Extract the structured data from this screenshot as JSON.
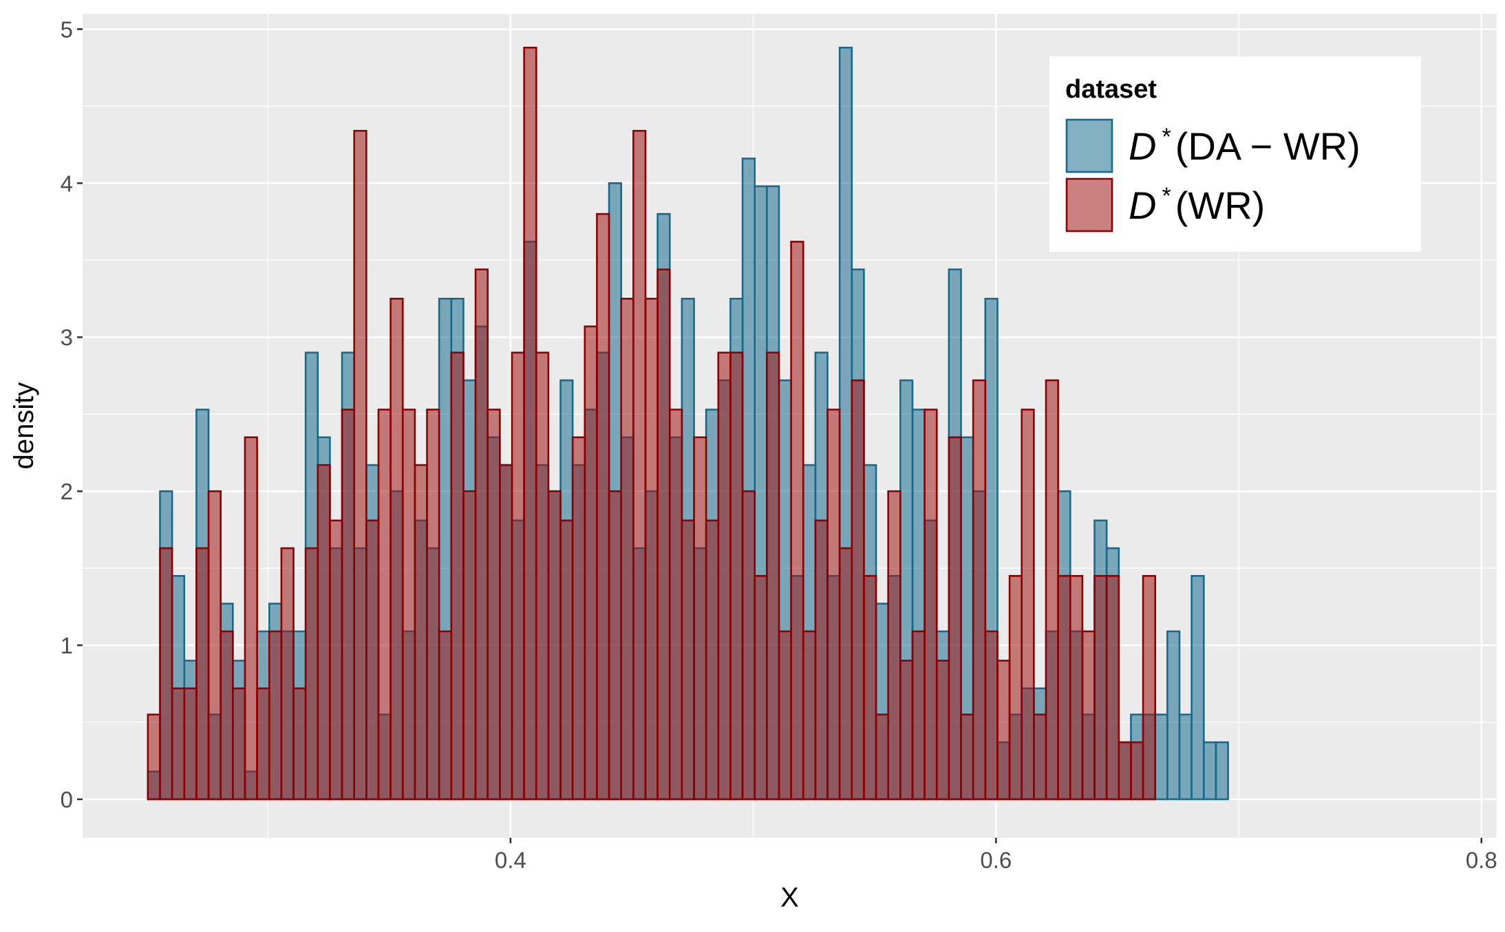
{
  "chart_data": {
    "type": "bar",
    "title": "",
    "xlabel": "X",
    "ylabel": "density",
    "xlim": [
      0.2237,
      0.8063
    ],
    "ylim": [
      -0.25,
      5.1
    ],
    "x_ticks": [
      0.4,
      0.6,
      0.8
    ],
    "x_tick_labels": [
      "0.4",
      "0.6",
      "0.8"
    ],
    "y_ticks": [
      0,
      1,
      2,
      3,
      4,
      5
    ],
    "y_tick_labels": [
      "0",
      "1",
      "2",
      "3",
      "4",
      "5"
    ],
    "grid": true,
    "bins": {
      "start": 0.2506,
      "width": 0.005
    },
    "legend": {
      "title": "dataset",
      "position": "top-right"
    },
    "series": [
      {
        "name": "D*(DA−WR)",
        "legend_parts": {
          "sym": "D",
          "sup": "*",
          "arg": "DA − WR"
        },
        "fill": "#1b6f8f",
        "stroke": "#16698a",
        "values": [
          0.18,
          2.0,
          1.45,
          0.9,
          2.53,
          0.55,
          1.27,
          0.9,
          0.18,
          1.09,
          1.27,
          1.09,
          1.09,
          2.9,
          2.35,
          1.63,
          2.9,
          1.63,
          2.17,
          0.55,
          2.0,
          1.09,
          1.81,
          1.63,
          3.25,
          3.25,
          2.72,
          3.07,
          2.35,
          2.17,
          1.81,
          3.62,
          2.17,
          2.0,
          2.72,
          2.17,
          2.53,
          2.9,
          4.0,
          2.35,
          1.63,
          2.0,
          3.8,
          2.35,
          3.25,
          1.63,
          2.53,
          2.72,
          3.25,
          4.16,
          3.98,
          3.98,
          2.72,
          1.45,
          2.17,
          2.9,
          1.45,
          4.88,
          3.44,
          2.17,
          1.27,
          1.45,
          2.72,
          2.53,
          1.81,
          1.09,
          3.44,
          2.35,
          2.0,
          3.25,
          0.37,
          0.55,
          0.72,
          0.72,
          1.09,
          2.0,
          1.09,
          0.55,
          1.81,
          1.63,
          0.37,
          0.55,
          0.55,
          0.55,
          1.09,
          0.55,
          1.45,
          0.37,
          0.37
        ],
        "bar_ids": [
          "a01",
          "a02",
          "a03",
          "a04",
          "a05",
          "a06",
          "a07",
          "a08",
          "a09",
          "a10",
          "a11",
          "a12",
          "a13",
          "a14",
          "a15",
          "a16",
          "a17",
          "a18",
          "a19",
          "a20",
          "a21",
          "a22",
          "a23",
          "a24",
          "a25",
          "a26",
          "a27",
          "a28",
          "a29",
          "a30",
          "a31",
          "a32",
          "a33",
          "a34",
          "a35",
          "a36",
          "a37",
          "a38",
          "a39",
          "a40",
          "a41",
          "a42",
          "a43",
          "a44",
          "a45",
          "a46",
          "a47",
          "a48",
          "a49",
          "a50",
          "a51",
          "a52",
          "a53",
          "a54",
          "a55",
          "a56",
          "a57",
          "a58",
          "a59",
          "a60",
          "a61",
          "a62",
          "a63",
          "a64",
          "a65",
          "a66",
          "a67",
          "a68",
          "a69",
          "a70",
          "a71",
          "a72",
          "a73",
          "a74",
          "a75",
          "a76",
          "a77",
          "a78",
          "a79",
          "a80",
          "a81",
          "a82",
          "a83",
          "a84",
          "a85",
          "a86",
          "a87",
          "a88",
          "a89"
        ]
      },
      {
        "name": "D*(WR)",
        "legend_parts": {
          "sym": "D",
          "sup": "*",
          "arg": "WR"
        },
        "fill": "#a31a1a",
        "stroke": "#8b0000",
        "values": [
          0.55,
          1.63,
          0.72,
          0.72,
          1.63,
          2.0,
          1.09,
          0.72,
          2.35,
          0.72,
          1.09,
          1.63,
          0.72,
          1.63,
          2.17,
          1.81,
          2.53,
          4.34,
          1.81,
          2.53,
          3.25,
          2.53,
          2.17,
          2.53,
          1.09,
          2.9,
          2.0,
          3.44,
          2.53,
          2.17,
          2.9,
          4.88,
          2.9,
          2.0,
          1.81,
          2.35,
          3.07,
          3.8,
          2.0,
          3.25,
          4.34,
          3.25,
          3.44,
          2.53,
          1.81,
          2.35,
          1.81,
          2.9,
          2.9,
          2.0,
          1.45,
          2.9,
          1.09,
          3.62,
          1.09,
          1.81,
          2.53,
          1.63,
          2.72,
          1.45,
          0.55,
          2.0,
          0.9,
          1.09,
          2.53,
          0.9,
          2.35,
          0.55,
          2.72,
          1.09,
          0.9,
          1.45,
          2.53,
          0.55,
          2.72,
          1.45,
          1.45,
          1.09,
          1.45,
          1.45,
          0.37,
          0.37,
          1.45
        ],
        "bar_ids": [
          "b01",
          "b02",
          "b03",
          "b04",
          "b05",
          "b06",
          "b07",
          "b08",
          "b09",
          "b10",
          "b11",
          "b12",
          "b13",
          "b14",
          "b15",
          "b16",
          "b17",
          "b18",
          "b19",
          "b20",
          "b21",
          "b22",
          "b23",
          "b24",
          "b25",
          "b26",
          "b27",
          "b28",
          "b29",
          "b30",
          "b31",
          "b32",
          "b33",
          "b34",
          "b35",
          "b36",
          "b37",
          "b38",
          "b39",
          "b40",
          "b41",
          "b42",
          "b43",
          "b44",
          "b45",
          "b46",
          "b47",
          "b48",
          "b49",
          "b50",
          "b51",
          "b52",
          "b53",
          "b54",
          "b55",
          "b56",
          "b57",
          "b58",
          "b59",
          "b60",
          "b61",
          "b62",
          "b63",
          "b64",
          "b65",
          "b66",
          "b67",
          "b68",
          "b69",
          "b70",
          "b71",
          "b72",
          "b73",
          "b74",
          "b75",
          "b76",
          "b77",
          "b78",
          "b79",
          "b80",
          "b81",
          "b82",
          "b83"
        ]
      }
    ]
  }
}
